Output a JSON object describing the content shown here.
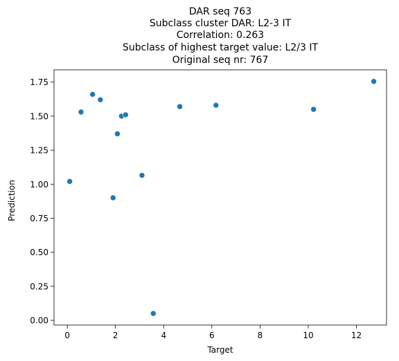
{
  "chart_data": {
    "type": "scatter",
    "title_lines": [
      "DAR seq 763",
      "Subclass cluster DAR: L2-3 IT",
      "Correlation: 0.263",
      "Subclass of highest target value: L2/3 IT",
      "Original seq nr: 767"
    ],
    "xlabel": "Target",
    "ylabel": "Prediction",
    "xlim": [
      -0.55,
      13.25
    ],
    "ylim": [
      -0.035,
      1.84
    ],
    "xticks": [
      0,
      2,
      4,
      6,
      8,
      10,
      12
    ],
    "xtick_labels": [
      "0",
      "2",
      "4",
      "6",
      "8",
      "10",
      "12"
    ],
    "yticks": [
      0.0,
      0.25,
      0.5,
      0.75,
      1.0,
      1.25,
      1.5,
      1.75
    ],
    "ytick_labels": [
      "0.00",
      "0.25",
      "0.50",
      "0.75",
      "1.00",
      "1.25",
      "1.50",
      "1.75"
    ],
    "grid": false,
    "marker_color": "#1f77b4",
    "points": [
      {
        "x": 0.1,
        "y": 1.02
      },
      {
        "x": 0.57,
        "y": 1.53
      },
      {
        "x": 1.05,
        "y": 1.66
      },
      {
        "x": 1.37,
        "y": 1.62
      },
      {
        "x": 1.9,
        "y": 0.9
      },
      {
        "x": 2.08,
        "y": 1.37
      },
      {
        "x": 2.25,
        "y": 1.5
      },
      {
        "x": 2.42,
        "y": 1.51
      },
      {
        "x": 3.1,
        "y": 1.065
      },
      {
        "x": 3.57,
        "y": 0.05
      },
      {
        "x": 4.67,
        "y": 1.57
      },
      {
        "x": 6.17,
        "y": 1.58
      },
      {
        "x": 10.22,
        "y": 1.55
      },
      {
        "x": 12.72,
        "y": 1.755
      }
    ]
  }
}
